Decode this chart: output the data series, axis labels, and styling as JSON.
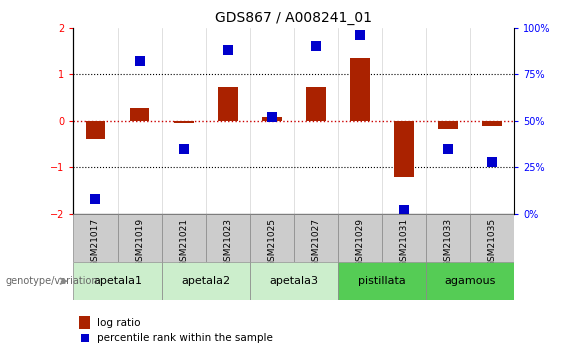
{
  "title": "GDS867 / A008241_01",
  "samples": [
    "GSM21017",
    "GSM21019",
    "GSM21021",
    "GSM21023",
    "GSM21025",
    "GSM21027",
    "GSM21029",
    "GSM21031",
    "GSM21033",
    "GSM21035"
  ],
  "log_ratio": [
    -0.4,
    0.28,
    -0.05,
    0.72,
    0.08,
    0.72,
    1.35,
    -1.2,
    -0.18,
    -0.12
  ],
  "percentile": [
    8,
    82,
    35,
    88,
    52,
    90,
    96,
    2,
    35,
    28
  ],
  "groups": [
    {
      "label": "apetala1",
      "start": 0,
      "end": 2,
      "color": "#cceecc"
    },
    {
      "label": "apetala2",
      "start": 2,
      "end": 4,
      "color": "#cceecc"
    },
    {
      "label": "apetala3",
      "start": 4,
      "end": 6,
      "color": "#cceecc"
    },
    {
      "label": "pistillata",
      "start": 6,
      "end": 8,
      "color": "#55cc55"
    },
    {
      "label": "agamous",
      "start": 8,
      "end": 10,
      "color": "#55cc55"
    }
  ],
  "bar_color": "#aa2200",
  "dot_color": "#0000cc",
  "ylim_left": [
    -2,
    2
  ],
  "ylim_right": [
    0,
    100
  ],
  "yticks_left": [
    -2,
    -1,
    0,
    1,
    2
  ],
  "yticks_right": [
    0,
    25,
    50,
    75,
    100
  ],
  "ytick_labels_right": [
    "0%",
    "25%",
    "50%",
    "75%",
    "100%"
  ],
  "hline_color": "#cc0000",
  "bar_width": 0.45,
  "dot_size": 45,
  "genotype_label": "genotype/variation",
  "legend_bar_label": "log ratio",
  "legend_dot_label": "percentile rank within the sample",
  "title_fontsize": 10,
  "tick_fontsize": 7,
  "sample_fontsize": 6.5,
  "group_fontsize": 8,
  "legend_fontsize": 7.5
}
